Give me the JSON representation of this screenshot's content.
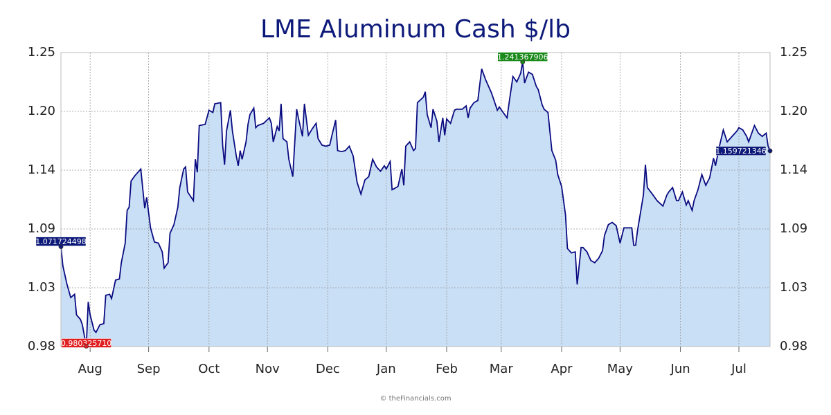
{
  "chart_data": {
    "type": "area",
    "title": "LME Aluminum Cash $/lb",
    "footer": "© theFinancials.com",
    "xlim": [
      0,
      364
    ],
    "xticks": [
      {
        "value": 15,
        "label": "Aug"
      },
      {
        "value": 45,
        "label": "Sep"
      },
      {
        "value": 76,
        "label": "Oct"
      },
      {
        "value": 106,
        "label": "Nov"
      },
      {
        "value": 137,
        "label": "Dec"
      },
      {
        "value": 167,
        "label": "Jan"
      },
      {
        "value": 198,
        "label": "Feb"
      },
      {
        "value": 226,
        "label": "Mar"
      },
      {
        "value": 257,
        "label": "Apr"
      },
      {
        "value": 287,
        "label": "May"
      },
      {
        "value": 318,
        "label": "Jun"
      },
      {
        "value": 348,
        "label": "Jul"
      }
    ],
    "ylim": [
      0.98,
      1.25
    ],
    "yticks": [
      0.98,
      {
        "value": 1.034,
        "label": "1.03"
      },
      {
        "value": 1.088,
        "label": "1.09"
      },
      {
        "value": 1.142,
        "label": "1.14"
      },
      {
        "value": 1.196,
        "label": "1.20"
      },
      1.25
    ],
    "grid": true,
    "line_color": "#0a0a80",
    "fill_color": "#c9dff6",
    "x": [
      0,
      1,
      3,
      5,
      7,
      8,
      10,
      11,
      13,
      14,
      15,
      17,
      18,
      20,
      22,
      23,
      25,
      26,
      28,
      30,
      31,
      33,
      34,
      35,
      36,
      38,
      41,
      43,
      44,
      46,
      48,
      50,
      52,
      53,
      55,
      56,
      58,
      60,
      61,
      63,
      64,
      65,
      68,
      69,
      70,
      71,
      74,
      76,
      78,
      79,
      82,
      83,
      84,
      85,
      87,
      88,
      90,
      91,
      92,
      93,
      95,
      96,
      97,
      99,
      100,
      101,
      104,
      107,
      108,
      109,
      111,
      112,
      113,
      114,
      116,
      117,
      119,
      121,
      122,
      124,
      125,
      127,
      129,
      131,
      132,
      134,
      136,
      138,
      139,
      141,
      142,
      144,
      146,
      148,
      150,
      152,
      154,
      156,
      158,
      160,
      162,
      164,
      166,
      167,
      169,
      170,
      171,
      173,
      175,
      176,
      177,
      179,
      181,
      182,
      183,
      186,
      187,
      188,
      190,
      191,
      193,
      194,
      196,
      197,
      198,
      200,
      202,
      203,
      206,
      208,
      209,
      210,
      212,
      214,
      216,
      218,
      221,
      224,
      225,
      227,
      229,
      230,
      232,
      234,
      236,
      237,
      238,
      240,
      242,
      244,
      245,
      247,
      248,
      250,
      252,
      254,
      255,
      257,
      259,
      260,
      262,
      264,
      265,
      267,
      268,
      270,
      272,
      274,
      276,
      278,
      279,
      281,
      283,
      285,
      287,
      289,
      293,
      294,
      295,
      296,
      299,
      300,
      301,
      304,
      306,
      309,
      311,
      312,
      314,
      316,
      317,
      319,
      321,
      322,
      324,
      325,
      327,
      329,
      331,
      333,
      335,
      336,
      338,
      340,
      342,
      345,
      347,
      348,
      350,
      352,
      353,
      356,
      358,
      360,
      362,
      363,
      364
    ],
    "values": [
      1.071724498,
      1.054,
      1.038,
      1.025,
      1.028,
      1.009,
      1.005,
      1.0,
      0.98032571,
      1.021,
      1.009,
      0.995,
      0.993,
      1.0,
      1.001,
      1.027,
      1.028,
      1.024,
      1.041,
      1.042,
      1.057,
      1.075,
      1.105,
      1.108,
      1.132,
      1.137,
      1.143,
      1.107,
      1.117,
      1.089,
      1.076,
      1.075,
      1.067,
      1.052,
      1.057,
      1.084,
      1.092,
      1.108,
      1.126,
      1.143,
      1.145,
      1.122,
      1.114,
      1.152,
      1.14,
      1.183,
      1.184,
      1.197,
      1.195,
      1.203,
      1.204,
      1.165,
      1.147,
      1.178,
      1.197,
      1.178,
      1.155,
      1.146,
      1.16,
      1.152,
      1.168,
      1.184,
      1.193,
      1.199,
      1.181,
      1.183,
      1.185,
      1.19,
      1.185,
      1.168,
      1.182,
      1.178,
      1.203,
      1.171,
      1.168,
      1.152,
      1.136,
      1.198,
      1.189,
      1.173,
      1.203,
      1.174,
      1.18,
      1.185,
      1.171,
      1.165,
      1.164,
      1.165,
      1.173,
      1.188,
      1.16,
      1.159,
      1.16,
      1.164,
      1.155,
      1.131,
      1.12,
      1.133,
      1.136,
      1.152,
      1.145,
      1.141,
      1.146,
      1.143,
      1.15,
      1.124,
      1.125,
      1.127,
      1.143,
      1.128,
      1.164,
      1.168,
      1.16,
      1.162,
      1.204,
      1.209,
      1.214,
      1.193,
      1.181,
      1.198,
      1.187,
      1.168,
      1.19,
      1.174,
      1.189,
      1.185,
      1.197,
      1.198,
      1.198,
      1.201,
      1.19,
      1.199,
      1.204,
      1.206,
      1.235,
      1.225,
      1.213,
      1.197,
      1.2,
      1.195,
      1.19,
      1.203,
      1.228,
      1.223,
      1.231,
      1.241367906,
      1.222,
      1.232,
      1.23,
      1.219,
      1.216,
      1.202,
      1.198,
      1.195,
      1.16,
      1.151,
      1.138,
      1.127,
      1.101,
      1.07,
      1.066,
      1.067,
      1.037,
      1.071,
      1.071,
      1.067,
      1.059,
      1.057,
      1.061,
      1.068,
      1.082,
      1.092,
      1.094,
      1.091,
      1.075,
      1.089,
      1.089,
      1.073,
      1.073,
      1.087,
      1.119,
      1.147,
      1.126,
      1.119,
      1.114,
      1.109,
      1.119,
      1.122,
      1.126,
      1.114,
      1.114,
      1.122,
      1.11,
      1.114,
      1.105,
      1.114,
      1.124,
      1.138,
      1.128,
      1.135,
      1.153,
      1.146,
      1.164,
      1.179,
      1.168,
      1.174,
      1.178,
      1.181,
      1.179,
      1.173,
      1.168,
      1.183,
      1.176,
      1.173,
      1.176,
      1.164,
      1.159721346
    ],
    "annotations": [
      {
        "x": 0,
        "label": "1.071724498",
        "color": "#0d1a7a"
      },
      {
        "x": 13,
        "label": "0.980325710",
        "color": "#e02020"
      },
      {
        "x": 237,
        "label": "1.241367906",
        "color": "#1a8a1a"
      },
      {
        "x": 364,
        "label": "1.159721346",
        "color": "#0d1a7a"
      }
    ]
  }
}
